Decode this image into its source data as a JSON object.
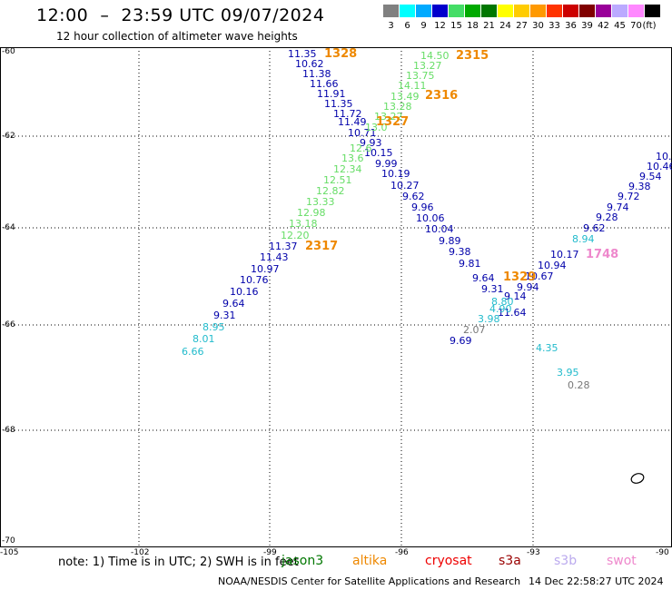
{
  "header": {
    "title": "12:00  –  23:59 UTC 09/07/2024",
    "subtitle": "12 hour collection of altimeter wave heights"
  },
  "legend": {
    "items": [
      {
        "label": "3",
        "color": "#808080"
      },
      {
        "label": "6",
        "color": "#00ffff"
      },
      {
        "label": "9",
        "color": "#00aaff"
      },
      {
        "label": "12",
        "color": "#0000cc"
      },
      {
        "label": "15",
        "color": "#44dd66"
      },
      {
        "label": "18",
        "color": "#00aa00"
      },
      {
        "label": "21",
        "color": "#007700"
      },
      {
        "label": "24",
        "color": "#ffff00"
      },
      {
        "label": "27",
        "color": "#ffcc00"
      },
      {
        "label": "30",
        "color": "#ff9900"
      },
      {
        "label": "33",
        "color": "#ff3300"
      },
      {
        "label": "36",
        "color": "#cc0000"
      },
      {
        "label": "39",
        "color": "#800000"
      },
      {
        "label": "42",
        "color": "#990099"
      },
      {
        "label": "45",
        "color": "#bbaaff"
      },
      {
        "label": "70",
        "color": "#ff88ff"
      },
      {
        "label": "",
        "color": "#000000"
      }
    ],
    "unit": "(ft)"
  },
  "axes": {
    "lat_labels": [
      "-60",
      "-62",
      "-64",
      "-66",
      "-68",
      "-70"
    ],
    "lon_labels": [
      "-105",
      "-102",
      "-99",
      "-96",
      "-93",
      "-90"
    ]
  },
  "colors": {
    "jason": "#0000aa",
    "swot_light": "#66dd66",
    "cyan": "#22bbcc",
    "grey": "#777777",
    "orange": "#ee8800",
    "pink": "#ee88cc"
  },
  "wave_labels": [
    {
      "t": "11.35",
      "c": "jason"
    },
    {
      "t": "10.62",
      "c": "jason"
    },
    {
      "t": "11.38",
      "c": "jason"
    },
    {
      "t": "11.66",
      "c": "jason"
    },
    {
      "t": "11.91",
      "c": "jason"
    },
    {
      "t": "11.35",
      "c": "jason"
    },
    {
      "t": "11.72",
      "c": "jason"
    },
    {
      "t": "11.49",
      "c": "jason"
    },
    {
      "t": "10.71",
      "c": "jason"
    },
    {
      "t": "9.93",
      "c": "jason"
    },
    {
      "t": "10.15",
      "c": "jason"
    },
    {
      "t": "9.99",
      "c": "jason"
    },
    {
      "t": "10.19",
      "c": "jason"
    },
    {
      "t": "10.27",
      "c": "jason"
    },
    {
      "t": "9.62",
      "c": "jason"
    },
    {
      "t": "9.96",
      "c": "jason"
    },
    {
      "t": "10.06",
      "c": "jason"
    },
    {
      "t": "10.04",
      "c": "jason"
    },
    {
      "t": "9.89",
      "c": "jason"
    },
    {
      "t": "9.38",
      "c": "jason"
    },
    {
      "t": "9.81",
      "c": "jason"
    },
    {
      "t": "9.64",
      "c": "jason"
    },
    {
      "t": "9.31",
      "c": "jason"
    },
    {
      "t": "9.14",
      "c": "jason"
    },
    {
      "t": "11.64",
      "c": "jason"
    },
    {
      "t": "9.69",
      "c": "jason"
    },
    {
      "t": "14.50",
      "c": "swot_light"
    },
    {
      "t": "13.27",
      "c": "swot_light"
    },
    {
      "t": "13.75",
      "c": "swot_light"
    },
    {
      "t": "14.11",
      "c": "swot_light"
    },
    {
      "t": "13.49",
      "c": "swot_light"
    },
    {
      "t": "13.28",
      "c": "swot_light"
    },
    {
      "t": "13.22",
      "c": "swot_light"
    },
    {
      "t": "13.0",
      "c": "swot_light"
    },
    {
      "t": "12.6",
      "c": "swot_light"
    },
    {
      "t": "13.6",
      "c": "swot_light"
    },
    {
      "t": "12.34",
      "c": "swot_light"
    },
    {
      "t": "12.51",
      "c": "swot_light"
    },
    {
      "t": "12.82",
      "c": "swot_light"
    },
    {
      "t": "13.33",
      "c": "swot_light"
    },
    {
      "t": "12.98",
      "c": "swot_light"
    },
    {
      "t": "13.18",
      "c": "swot_light"
    },
    {
      "t": "12.20",
      "c": "swot_light"
    },
    {
      "t": "11.37",
      "c": "jason"
    },
    {
      "t": "11.43",
      "c": "jason"
    },
    {
      "t": "10.97",
      "c": "jason"
    },
    {
      "t": "10.76",
      "c": "jason"
    },
    {
      "t": "10.16",
      "c": "jason"
    },
    {
      "t": "9.64",
      "c": "jason"
    },
    {
      "t": "9.31",
      "c": "jason"
    },
    {
      "t": "8.95",
      "c": "cyan"
    },
    {
      "t": "8.01",
      "c": "cyan"
    },
    {
      "t": "6.66",
      "c": "cyan"
    },
    {
      "t": "10.",
      "c": "jason"
    },
    {
      "t": "10.46",
      "c": "jason"
    },
    {
      "t": "9.54",
      "c": "jason"
    },
    {
      "t": "9.38",
      "c": "jason"
    },
    {
      "t": "9.72",
      "c": "jason"
    },
    {
      "t": "9.74",
      "c": "jason"
    },
    {
      "t": "9.28",
      "c": "jason"
    },
    {
      "t": "9.62",
      "c": "jason"
    },
    {
      "t": "8.94",
      "c": "cyan"
    },
    {
      "t": "10.17",
      "c": "jason"
    },
    {
      "t": "10.94",
      "c": "jason"
    },
    {
      "t": "10.67",
      "c": "jason"
    },
    {
      "t": "9.94",
      "c": "jason"
    },
    {
      "t": "8.80",
      "c": "cyan"
    },
    {
      "t": "4.90",
      "c": "cyan"
    },
    {
      "t": "3.98",
      "c": "cyan"
    },
    {
      "t": "2.07",
      "c": "grey"
    },
    {
      "t": "4.35",
      "c": "cyan"
    },
    {
      "t": "3.95",
      "c": "cyan"
    },
    {
      "t": "0.28",
      "c": "grey"
    }
  ],
  "pass_labels": [
    {
      "t": "1328",
      "c": "orange"
    },
    {
      "t": "2315",
      "c": "orange"
    },
    {
      "t": "2316",
      "c": "orange"
    },
    {
      "t": "1327",
      "c": "orange"
    },
    {
      "t": "2317",
      "c": "orange"
    },
    {
      "t": "1329",
      "c": "orange"
    },
    {
      "t": "1748",
      "c": "pink"
    }
  ],
  "footer": {
    "note": "note:  1) Time is in UTC; 2) SWH is in feet",
    "satellites": [
      {
        "name": "jason3",
        "color": "#007700"
      },
      {
        "name": "altika",
        "color": "#ee8800"
      },
      {
        "name": "cryosat",
        "color": "#ee0000"
      },
      {
        "name": "s3a",
        "color": "#990000"
      },
      {
        "name": "s3b",
        "color": "#bbaaee"
      },
      {
        "name": "swot",
        "color": "#ee88cc"
      }
    ],
    "credit": "NOAA/NESDIS Center for Satellite Applications and Research",
    "generated": "14 Dec 22:58:27 UTC 2024"
  }
}
